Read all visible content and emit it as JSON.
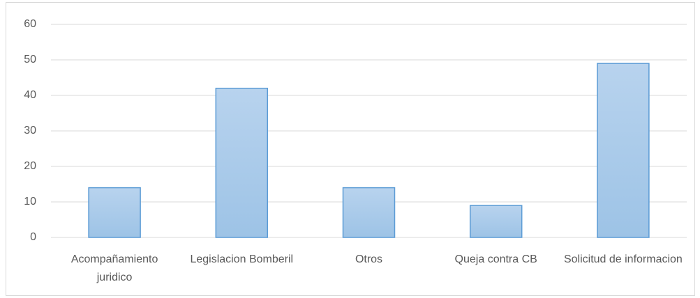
{
  "chart_data": {
    "type": "bar",
    "categories": [
      "Acompañamiento juridico",
      "Legislacion Bomberil",
      "Otros",
      "Queja contra CB",
      "Solicitud de informacion"
    ],
    "values": [
      14,
      42,
      14,
      9,
      49
    ],
    "color": "#9dc3e6",
    "edgecolor": "#5b9bd5",
    "ylim": [
      0,
      60
    ],
    "yticks": [
      0,
      10,
      20,
      30,
      40,
      50,
      60
    ],
    "grid": true
  }
}
